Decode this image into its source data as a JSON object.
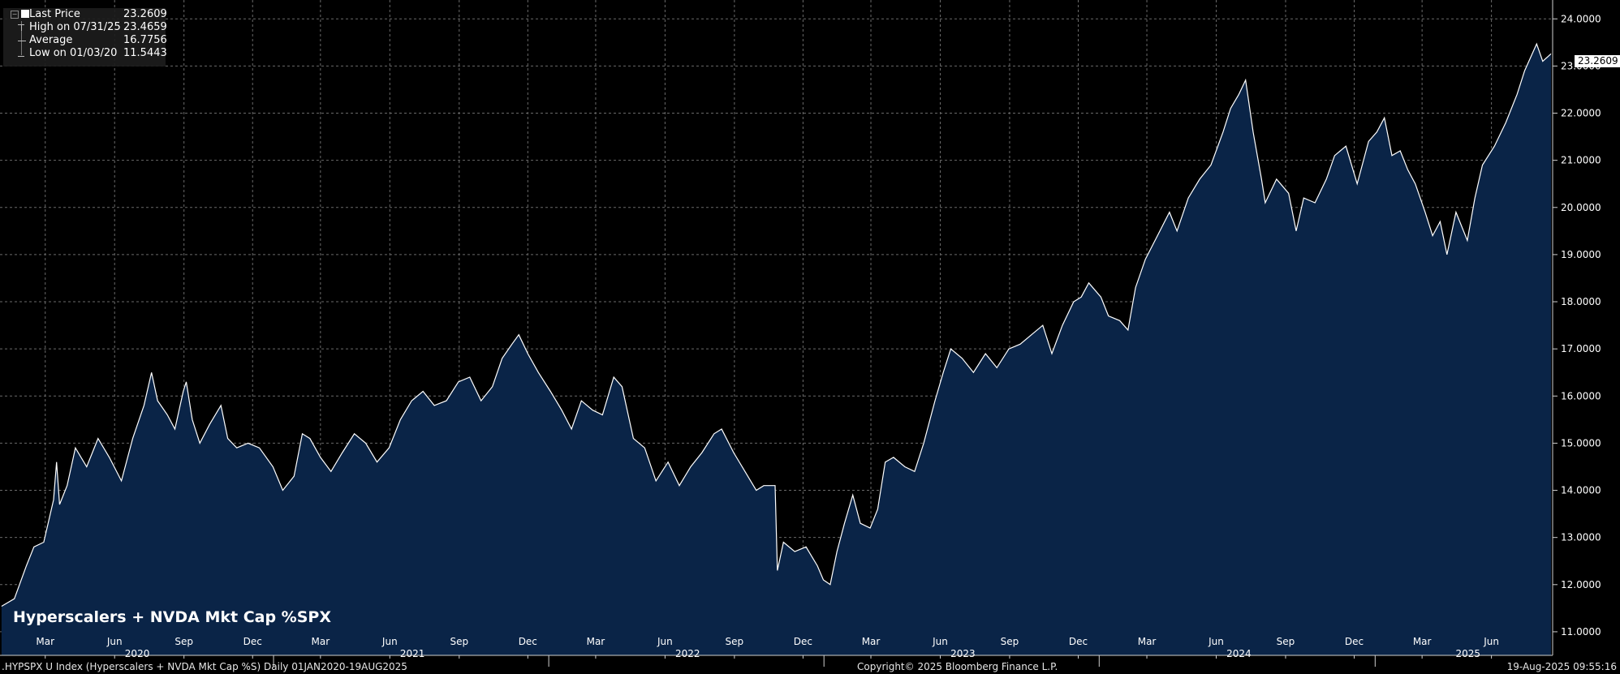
{
  "legend": {
    "rows": [
      {
        "label": "Last Price",
        "value": "23.2609"
      },
      {
        "label": "High on 07/31/25",
        "value": "23.4659"
      },
      {
        "label": "Average",
        "value": "16.7756"
      },
      {
        "label": "Low on 01/03/20",
        "value": "11.5443"
      }
    ]
  },
  "last_price_tag": "23.2609",
  "footer": {
    "left": ".HYPSPX U Index (Hyperscalers + NVDA Mkt Cap %S)  Daily 01JAN2020-19AUG2025",
    "center": "Copyright© 2025 Bloomberg Finance L.P.",
    "right": "19-Aug-2025 09:55:16"
  },
  "colors": {
    "background": "#000000",
    "area_fill": "#0a2447",
    "line": "#ffffff",
    "grid": "#6a6a6a"
  },
  "chart_data": {
    "type": "area",
    "title": "Hyperscalers + NVDA Mkt Cap %SPX",
    "x_range": [
      "2020-01-01",
      "2025-08-19"
    ],
    "ylim": [
      10.5,
      24.4
    ],
    "y_ticks": [
      "11.0000",
      "12.0000",
      "13.0000",
      "14.0000",
      "15.0000",
      "16.0000",
      "17.0000",
      "18.0000",
      "19.0000",
      "20.0000",
      "21.0000",
      "22.0000",
      "23.0000",
      "24.0000"
    ],
    "month_ticks": [
      {
        "label": "Mar",
        "date": "2020-03-01"
      },
      {
        "label": "Jun",
        "date": "2020-06-01"
      },
      {
        "label": "Sep",
        "date": "2020-09-01"
      },
      {
        "label": "Dec",
        "date": "2020-12-01"
      },
      {
        "label": "Mar",
        "date": "2021-03-01"
      },
      {
        "label": "Jun",
        "date": "2021-06-01"
      },
      {
        "label": "Sep",
        "date": "2021-09-01"
      },
      {
        "label": "Dec",
        "date": "2021-12-01"
      },
      {
        "label": "Mar",
        "date": "2022-03-01"
      },
      {
        "label": "Jun",
        "date": "2022-06-01"
      },
      {
        "label": "Sep",
        "date": "2022-09-01"
      },
      {
        "label": "Dec",
        "date": "2022-12-01"
      },
      {
        "label": "Mar",
        "date": "2023-03-01"
      },
      {
        "label": "Jun",
        "date": "2023-06-01"
      },
      {
        "label": "Sep",
        "date": "2023-09-01"
      },
      {
        "label": "Dec",
        "date": "2023-12-01"
      },
      {
        "label": "Mar",
        "date": "2024-03-01"
      },
      {
        "label": "Jun",
        "date": "2024-06-01"
      },
      {
        "label": "Sep",
        "date": "2024-09-01"
      },
      {
        "label": "Dec",
        "date": "2024-12-01"
      },
      {
        "label": "Mar",
        "date": "2025-03-01"
      },
      {
        "label": "Jun",
        "date": "2025-06-01"
      }
    ],
    "year_labels": [
      {
        "label": "2020",
        "date": "2020-07-01"
      },
      {
        "label": "2021",
        "date": "2021-07-01"
      },
      {
        "label": "2022",
        "date": "2022-07-01"
      },
      {
        "label": "2023",
        "date": "2023-07-01"
      },
      {
        "label": "2024",
        "date": "2024-07-01"
      },
      {
        "label": "2025",
        "date": "2025-05-01"
      }
    ],
    "year_dividers": [
      "2021-01-01",
      "2022-01-01",
      "2023-01-01",
      "2024-01-01",
      "2025-01-01"
    ],
    "series": [
      {
        "name": "Last Price",
        "points": [
          [
            "2020-01-03",
            11.54
          ],
          [
            "2020-01-20",
            11.7
          ],
          [
            "2020-02-05",
            12.4
          ],
          [
            "2020-02-15",
            12.8
          ],
          [
            "2020-02-28",
            12.9
          ],
          [
            "2020-03-12",
            13.8
          ],
          [
            "2020-03-16",
            14.6
          ],
          [
            "2020-03-20",
            13.7
          ],
          [
            "2020-03-30",
            14.1
          ],
          [
            "2020-04-10",
            14.9
          ],
          [
            "2020-04-25",
            14.5
          ],
          [
            "2020-05-10",
            15.1
          ],
          [
            "2020-05-25",
            14.7
          ],
          [
            "2020-06-10",
            14.2
          ],
          [
            "2020-06-25",
            15.1
          ],
          [
            "2020-07-10",
            15.8
          ],
          [
            "2020-07-20",
            16.5
          ],
          [
            "2020-07-28",
            15.9
          ],
          [
            "2020-08-10",
            15.6
          ],
          [
            "2020-08-20",
            15.3
          ],
          [
            "2020-08-31",
            16.1
          ],
          [
            "2020-09-04",
            16.3
          ],
          [
            "2020-09-12",
            15.5
          ],
          [
            "2020-09-22",
            15.0
          ],
          [
            "2020-10-05",
            15.4
          ],
          [
            "2020-10-20",
            15.8
          ],
          [
            "2020-10-29",
            15.1
          ],
          [
            "2020-11-10",
            14.9
          ],
          [
            "2020-11-25",
            15.0
          ],
          [
            "2020-12-10",
            14.9
          ],
          [
            "2020-12-28",
            14.5
          ],
          [
            "2021-01-10",
            14.0
          ],
          [
            "2021-01-25",
            14.3
          ],
          [
            "2021-02-05",
            15.2
          ],
          [
            "2021-02-15",
            15.1
          ],
          [
            "2021-03-01",
            14.7
          ],
          [
            "2021-03-15",
            14.4
          ],
          [
            "2021-03-30",
            14.8
          ],
          [
            "2021-04-15",
            15.2
          ],
          [
            "2021-04-30",
            15.0
          ],
          [
            "2021-05-15",
            14.6
          ],
          [
            "2021-05-31",
            14.9
          ],
          [
            "2021-06-15",
            15.5
          ],
          [
            "2021-06-30",
            15.9
          ],
          [
            "2021-07-15",
            16.1
          ],
          [
            "2021-07-30",
            15.8
          ],
          [
            "2021-08-15",
            15.9
          ],
          [
            "2021-08-31",
            16.3
          ],
          [
            "2021-09-15",
            16.4
          ],
          [
            "2021-09-30",
            15.9
          ],
          [
            "2021-10-15",
            16.2
          ],
          [
            "2021-10-28",
            16.8
          ],
          [
            "2021-11-10",
            17.1
          ],
          [
            "2021-11-19",
            17.3
          ],
          [
            "2021-12-01",
            16.9
          ],
          [
            "2021-12-15",
            16.5
          ],
          [
            "2021-12-31",
            16.1
          ],
          [
            "2022-01-15",
            15.7
          ],
          [
            "2022-01-28",
            15.3
          ],
          [
            "2022-02-10",
            15.9
          ],
          [
            "2022-02-25",
            15.7
          ],
          [
            "2022-03-10",
            15.6
          ],
          [
            "2022-03-25",
            16.4
          ],
          [
            "2022-04-05",
            16.2
          ],
          [
            "2022-04-20",
            15.1
          ],
          [
            "2022-05-05",
            14.9
          ],
          [
            "2022-05-20",
            14.2
          ],
          [
            "2022-06-05",
            14.6
          ],
          [
            "2022-06-20",
            14.1
          ],
          [
            "2022-07-05",
            14.5
          ],
          [
            "2022-07-20",
            14.8
          ],
          [
            "2022-08-05",
            15.2
          ],
          [
            "2022-08-15",
            15.3
          ],
          [
            "2022-08-31",
            14.8
          ],
          [
            "2022-09-15",
            14.4
          ],
          [
            "2022-09-30",
            14.0
          ],
          [
            "2022-10-10",
            14.1
          ],
          [
            "2022-10-25",
            14.1
          ],
          [
            "2022-10-28",
            12.3
          ],
          [
            "2022-11-05",
            12.9
          ],
          [
            "2022-11-20",
            12.7
          ],
          [
            "2022-12-05",
            12.8
          ],
          [
            "2022-12-20",
            12.4
          ],
          [
            "2022-12-28",
            12.1
          ],
          [
            "2023-01-06",
            12.0
          ],
          [
            "2023-01-15",
            12.7
          ],
          [
            "2023-01-25",
            13.3
          ],
          [
            "2023-02-05",
            13.9
          ],
          [
            "2023-02-15",
            13.3
          ],
          [
            "2023-02-28",
            13.2
          ],
          [
            "2023-03-10",
            13.6
          ],
          [
            "2023-03-20",
            14.6
          ],
          [
            "2023-03-31",
            14.7
          ],
          [
            "2023-04-15",
            14.5
          ],
          [
            "2023-04-28",
            14.4
          ],
          [
            "2023-05-10",
            15.0
          ],
          [
            "2023-05-25",
            15.9
          ],
          [
            "2023-06-05",
            16.5
          ],
          [
            "2023-06-15",
            17.0
          ],
          [
            "2023-06-30",
            16.8
          ],
          [
            "2023-07-15",
            16.5
          ],
          [
            "2023-07-31",
            16.9
          ],
          [
            "2023-08-15",
            16.6
          ],
          [
            "2023-08-31",
            17.0
          ],
          [
            "2023-09-15",
            17.1
          ],
          [
            "2023-09-30",
            17.3
          ],
          [
            "2023-10-15",
            17.5
          ],
          [
            "2023-10-27",
            16.9
          ],
          [
            "2023-11-10",
            17.5
          ],
          [
            "2023-11-25",
            18.0
          ],
          [
            "2023-12-05",
            18.1
          ],
          [
            "2023-12-15",
            18.4
          ],
          [
            "2023-12-31",
            18.1
          ],
          [
            "2024-01-10",
            17.7
          ],
          [
            "2024-01-25",
            17.6
          ],
          [
            "2024-02-05",
            17.4
          ],
          [
            "2024-02-15",
            18.3
          ],
          [
            "2024-02-28",
            18.9
          ],
          [
            "2024-03-15",
            19.4
          ],
          [
            "2024-03-31",
            19.9
          ],
          [
            "2024-04-10",
            19.5
          ],
          [
            "2024-04-25",
            20.2
          ],
          [
            "2024-05-10",
            20.6
          ],
          [
            "2024-05-25",
            20.9
          ],
          [
            "2024-06-10",
            21.6
          ],
          [
            "2024-06-20",
            22.1
          ],
          [
            "2024-07-01",
            22.4
          ],
          [
            "2024-07-10",
            22.7
          ],
          [
            "2024-07-20",
            21.6
          ],
          [
            "2024-07-31",
            20.6
          ],
          [
            "2024-08-05",
            20.1
          ],
          [
            "2024-08-20",
            20.6
          ],
          [
            "2024-09-05",
            20.3
          ],
          [
            "2024-09-15",
            19.5
          ],
          [
            "2024-09-25",
            20.2
          ],
          [
            "2024-10-10",
            20.1
          ],
          [
            "2024-10-25",
            20.6
          ],
          [
            "2024-11-05",
            21.1
          ],
          [
            "2024-11-20",
            21.3
          ],
          [
            "2024-12-05",
            20.5
          ],
          [
            "2024-12-20",
            21.4
          ],
          [
            "2024-12-31",
            21.6
          ],
          [
            "2025-01-10",
            21.9
          ],
          [
            "2025-01-20",
            21.1
          ],
          [
            "2025-01-31",
            21.2
          ],
          [
            "2025-02-10",
            20.8
          ],
          [
            "2025-02-20",
            20.5
          ],
          [
            "2025-03-05",
            19.9
          ],
          [
            "2025-03-15",
            19.4
          ],
          [
            "2025-03-25",
            19.7
          ],
          [
            "2025-04-03",
            19.0
          ],
          [
            "2025-04-15",
            19.9
          ],
          [
            "2025-04-30",
            19.3
          ],
          [
            "2025-05-10",
            20.2
          ],
          [
            "2025-05-20",
            20.9
          ],
          [
            "2025-06-05",
            21.3
          ],
          [
            "2025-06-20",
            21.8
          ],
          [
            "2025-07-05",
            22.4
          ],
          [
            "2025-07-15",
            22.9
          ],
          [
            "2025-07-31",
            23.47
          ],
          [
            "2025-08-08",
            23.1
          ],
          [
            "2025-08-19",
            23.26
          ]
        ]
      }
    ]
  }
}
